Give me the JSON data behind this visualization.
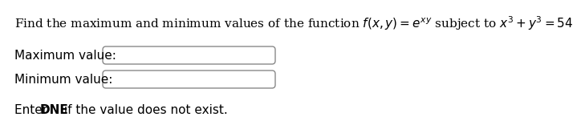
{
  "title_text": "Find the maximum and minimum values of the function $f(x, y) = e^{xy}$ subject to $x^3 + y^3 = 54$",
  "label_max": "Maximum value:",
  "label_min": "Minimum value:",
  "footer_normal": "Enter ",
  "footer_bold": "DNE",
  "footer_rest": " if the value does not exist.",
  "bg_color": "#ffffff",
  "text_color": "#000000",
  "box_edge_color": "#888888",
  "title_fontsize": 11.0,
  "label_fontsize": 11.0,
  "footer_fontsize": 11.0,
  "fig_width": 6.65,
  "fig_height": 1.51
}
